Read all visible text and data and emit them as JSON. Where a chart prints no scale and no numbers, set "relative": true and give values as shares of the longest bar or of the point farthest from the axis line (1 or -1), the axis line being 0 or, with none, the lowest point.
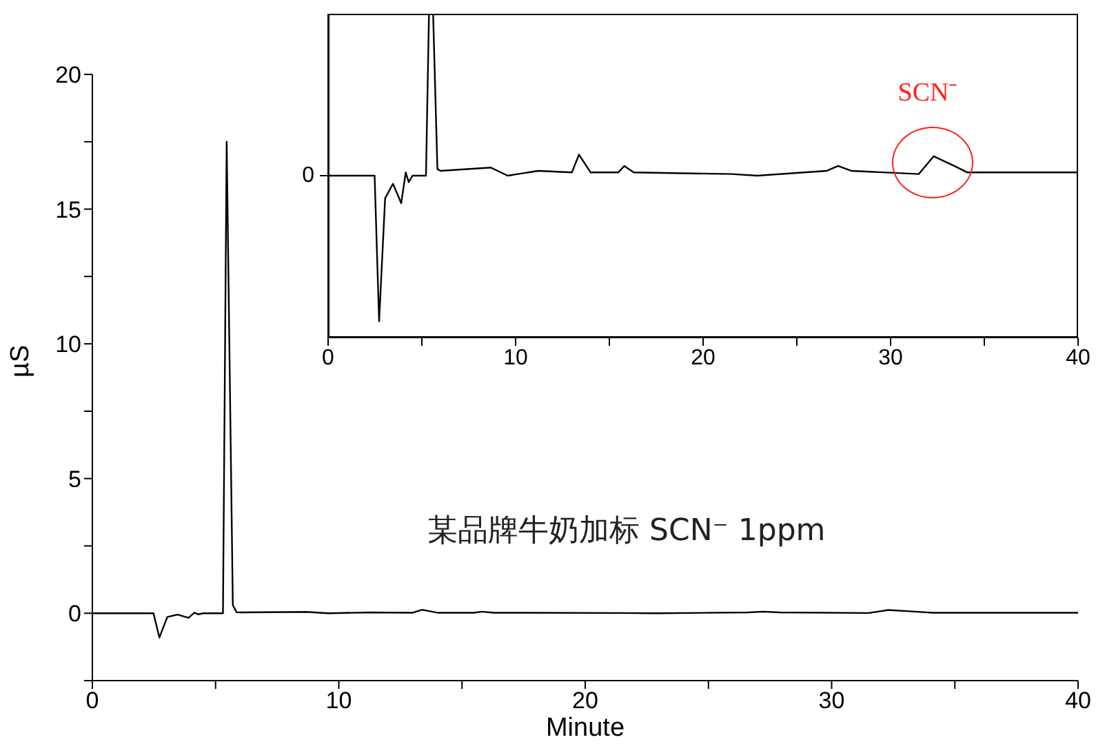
{
  "chart_data": [
    {
      "type": "line",
      "xlabel": "Minute",
      "ylabel": "µS",
      "xlim": [
        0,
        40
      ],
      "ylim": [
        -2.5,
        20
      ],
      "xticks": [
        0,
        {
          "value": 5,
          "label": null
        },
        10,
        {
          "value": 15,
          "label": null
        },
        20,
        {
          "value": 25,
          "label": null
        },
        30,
        {
          "value": 35,
          "label": null
        },
        40
      ],
      "yticks": [
        {
          "value": -2.5,
          "label": null
        },
        0,
        {
          "value": 2.5,
          "label": null
        },
        5,
        {
          "value": 7.5,
          "label": null
        },
        10,
        {
          "value": 12.5,
          "label": null
        },
        15,
        {
          "value": 17.5,
          "label": null
        },
        20
      ],
      "annotations": [
        "某品牌牛奶加标 SCN⁻ 1ppm"
      ],
      "series": [
        {
          "color": "#000000",
          "x": [
            0,
            2.48,
            2.72,
            3.04,
            3.46,
            3.9,
            4.14,
            4.3,
            4.5,
            5.22,
            5.3,
            5.45,
            5.7,
            5.85,
            6.0,
            8.68,
            9.58,
            11.2,
            13.0,
            13.38,
            14.0,
            15.47,
            15.8,
            16.3,
            21.5,
            22.9,
            26.6,
            27.2,
            27.9,
            31.5,
            32.3,
            33.4,
            34.1,
            40
          ],
          "values": [
            0,
            0,
            -0.9,
            -0.14,
            -0.05,
            -0.17,
            0.02,
            -0.04,
            0,
            0,
            0,
            17.5,
            0.3,
            0.04,
            0.03,
            0.05,
            0,
            0.03,
            0.02,
            0.13,
            0.02,
            0.02,
            0.06,
            0.02,
            0.01,
            0,
            0.03,
            0.06,
            0.03,
            0.01,
            0.12,
            0.06,
            0.02,
            0.02
          ]
        }
      ]
    },
    {
      "type": "line",
      "xlim": [
        0,
        40
      ],
      "relative": true,
      "xticks": [
        0,
        {
          "value": 5,
          "label": null
        },
        10,
        {
          "value": 15,
          "label": null
        },
        20,
        {
          "value": 25,
          "label": null
        },
        30,
        {
          "value": 35,
          "label": null
        },
        40
      ],
      "annotations": [
        "0",
        {
          "text": "SCN⁻",
          "x": 32.3,
          "y": 0.56
        }
      ],
      "series": [
        {
          "color": "#000000",
          "x": [
            0,
            2.48,
            2.72,
            3.04,
            3.46,
            3.9,
            4.14,
            4.3,
            4.5,
            5.22,
            5.38,
            5.6,
            5.83,
            6.0,
            8.68,
            9.58,
            11.2,
            13.0,
            13.38,
            14.0,
            15.47,
            15.8,
            16.3,
            21.5,
            22.9,
            26.6,
            27.2,
            27.9,
            31.5,
            32.3,
            33.4,
            34.1,
            40
          ],
          "values": [
            0.5,
            0.5,
            0.05,
            0.43,
            0.475,
            0.415,
            0.51,
            0.48,
            0.5,
            0.5,
            1,
            1,
            0.52,
            0.515,
            0.525,
            0.5,
            0.515,
            0.51,
            0.565,
            0.51,
            0.51,
            0.53,
            0.51,
            0.505,
            0.5,
            0.515,
            0.53,
            0.515,
            0.505,
            0.56,
            0.53,
            0.51,
            0.51
          ]
        }
      ]
    }
  ]
}
